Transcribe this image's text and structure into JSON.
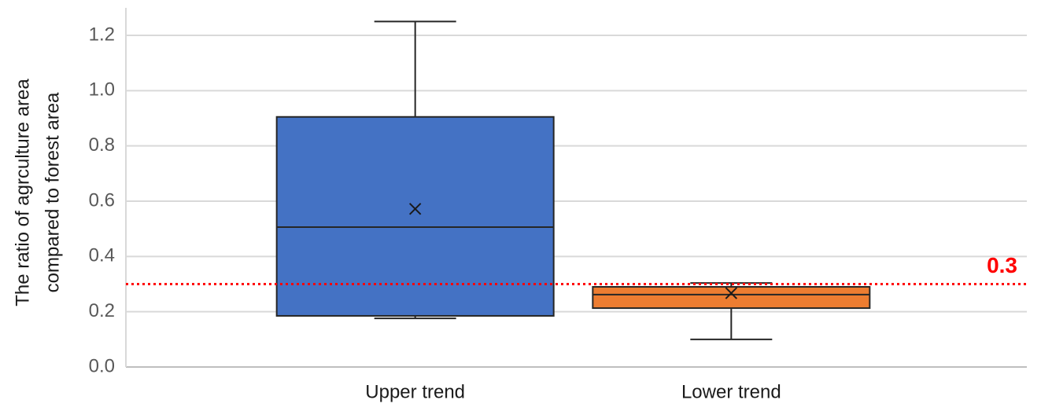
{
  "chart_data": {
    "type": "box",
    "ylabel": [
      "The ratio of agrculture area",
      "compared to forest area"
    ],
    "categories": [
      "Upper trend",
      "Lower trend"
    ],
    "boxes": [
      {
        "color": "#4472c4",
        "min": 0.176,
        "q1": 0.185,
        "median": 0.506,
        "q3": 0.905,
        "max": 1.25,
        "mean": 0.572
      },
      {
        "color": "#ed7d31",
        "min": 0.1,
        "q1": 0.213,
        "median": 0.262,
        "q3": 0.29,
        "max": 0.304,
        "mean": 0.267
      }
    ],
    "ylim": [
      0,
      1.3
    ],
    "yticks": [
      {
        "value": 0,
        "label": "0.0"
      },
      0.2,
      0.4,
      0.6,
      0.8,
      {
        "value": 1,
        "label": "1.0"
      },
      1.2
    ],
    "grid": true,
    "reference_line": {
      "value": 0.3,
      "color": "#ff0000"
    }
  }
}
